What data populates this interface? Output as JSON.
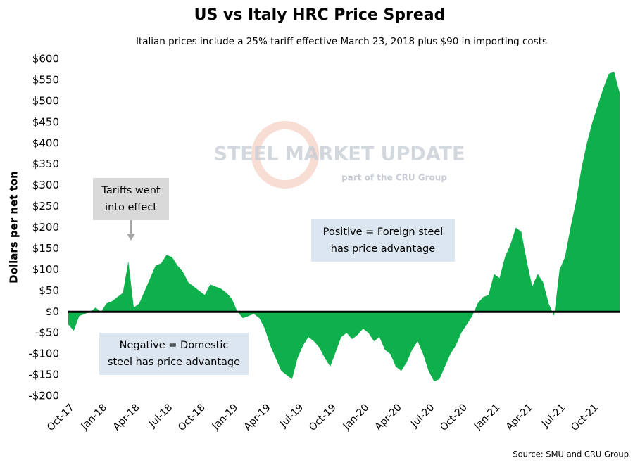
{
  "chart_data": {
    "type": "area",
    "title": "US vs Italy HRC Price Spread",
    "subtitle": "Italian prices include a 25% tariff effective March 23, 2018 plus $90 in importing costs",
    "y_label": "Dollars per net ton",
    "source": "Source: SMU and CRU Group",
    "watermark": [
      "STEEL MARKET UPDATE",
      "part of the CRU Group"
    ],
    "annotations": [
      [
        "Tariffs went",
        "into effect"
      ],
      [
        "Positive = Foreign steel",
        "has price advantage"
      ],
      [
        "Negative = Domestic",
        "steel has price advantage"
      ]
    ],
    "color": "#0db04b",
    "categories": [
      "Oct-17",
      null,
      null,
      null,
      null,
      null,
      "Jan-18",
      null,
      null,
      null,
      null,
      null,
      "Apr-18",
      null,
      null,
      null,
      null,
      null,
      "Jul-18",
      null,
      null,
      null,
      null,
      null,
      "Oct-18",
      null,
      null,
      null,
      null,
      null,
      "Jan-19",
      null,
      null,
      null,
      null,
      null,
      "Apr-19",
      null,
      null,
      null,
      null,
      null,
      "Jul-19",
      null,
      null,
      null,
      null,
      null,
      "Oct-19",
      null,
      null,
      null,
      null,
      null,
      "Jan-20",
      null,
      null,
      null,
      null,
      null,
      "Apr-20",
      null,
      null,
      null,
      null,
      null,
      "Jul-20",
      null,
      null,
      null,
      null,
      null,
      "Oct-20",
      null,
      null,
      null,
      null,
      null,
      "Jan-21",
      null,
      null,
      null,
      null,
      null,
      "Apr-21",
      null,
      null,
      null,
      null,
      null,
      "Jul-21",
      null,
      null,
      null,
      null,
      null,
      "Oct-21",
      null,
      null,
      null,
      null,
      null
    ],
    "values": [
      -30,
      -45,
      -10,
      -5,
      0,
      10,
      0,
      20,
      25,
      35,
      45,
      120,
      10,
      20,
      50,
      80,
      110,
      115,
      135,
      130,
      110,
      95,
      70,
      60,
      50,
      40,
      65,
      60,
      55,
      45,
      30,
      0,
      -15,
      -10,
      -5,
      -15,
      -40,
      -80,
      -110,
      -140,
      -150,
      -160,
      -110,
      -80,
      -60,
      -70,
      -85,
      -110,
      -130,
      -95,
      -60,
      -50,
      -65,
      -55,
      -40,
      -50,
      -70,
      -60,
      -90,
      -100,
      -130,
      -140,
      -120,
      -90,
      -70,
      -100,
      -140,
      -165,
      -160,
      -130,
      -100,
      -80,
      -50,
      -30,
      -10,
      20,
      35,
      40,
      90,
      80,
      130,
      160,
      200,
      190,
      120,
      60,
      90,
      70,
      20,
      -10,
      100,
      130,
      200,
      260,
      340,
      400,
      450,
      490,
      530,
      565,
      570,
      520
    ],
    "ylim": [
      -200,
      600
    ],
    "yticks": [
      {
        "value": -200,
        "label": "-$200"
      },
      {
        "value": -150,
        "label": "-$150"
      },
      {
        "value": -100,
        "label": "-$100"
      },
      {
        "value": -50,
        "label": "-$50"
      },
      {
        "value": 0,
        "label": "$0"
      },
      {
        "value": 50,
        "label": "$50"
      },
      {
        "value": 100,
        "label": "$100"
      },
      {
        "value": 150,
        "label": "$150"
      },
      {
        "value": 200,
        "label": "$200"
      },
      {
        "value": 250,
        "label": "$250"
      },
      {
        "value": 300,
        "label": "$300"
      },
      {
        "value": 350,
        "label": "$350"
      },
      {
        "value": 400,
        "label": "$400"
      },
      {
        "value": 450,
        "label": "$450"
      },
      {
        "value": 500,
        "label": "$500"
      },
      {
        "value": 550,
        "label": "$550"
      },
      {
        "value": 600,
        "label": "$600"
      }
    ]
  }
}
